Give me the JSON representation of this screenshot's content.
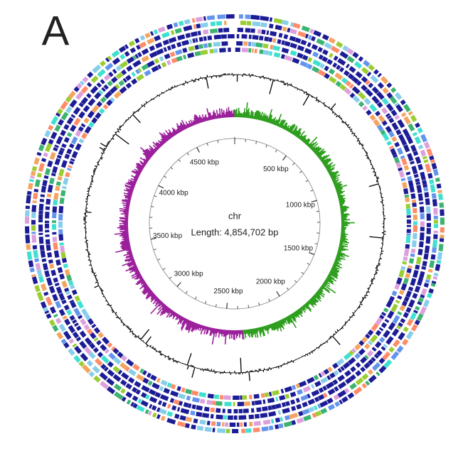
{
  "panel_label": "A",
  "chromosome": {
    "name": "chr",
    "length": {
      "value": 4854702,
      "label": "Length: 4,854,702 bp"
    },
    "ticks": [
      {
        "value": 500000,
        "label": "500 kbp"
      },
      {
        "value": 1000000,
        "label": "1000 kbp"
      },
      {
        "value": 1500000,
        "label": "1500 kbp"
      },
      {
        "value": 2000000,
        "label": "2000 kbp"
      },
      {
        "value": 2500000,
        "label": "2500 kbp"
      },
      {
        "value": 3000000,
        "label": "3000 kbp"
      },
      {
        "value": 3500000,
        "label": "3500 kbp"
      },
      {
        "value": 4000000,
        "label": "4000 kbp"
      },
      {
        "value": 4500000,
        "label": "4500 kbp"
      }
    ]
  }
}
